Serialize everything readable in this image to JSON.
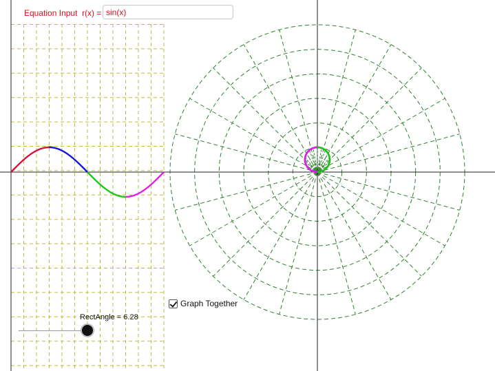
{
  "equation": {
    "label": "Equation Input  r(x) =",
    "value": "sin(x)"
  },
  "checkbox": {
    "label": "Graph Together",
    "checked": true
  },
  "slider": {
    "label": "RectAngle = 6.28",
    "value": 6.28,
    "min": 0,
    "max": 6.28
  },
  "colors": {
    "rect_grid": "#bdbd3a",
    "polar_grid": "#2f7f2f",
    "axes": "#222222",
    "segment_1": "#d4133d",
    "segment_2": "#1515d9",
    "segment_3": "#19c819",
    "segment_4": "#e41ee4",
    "equation_text": "#d4131d"
  }
}
